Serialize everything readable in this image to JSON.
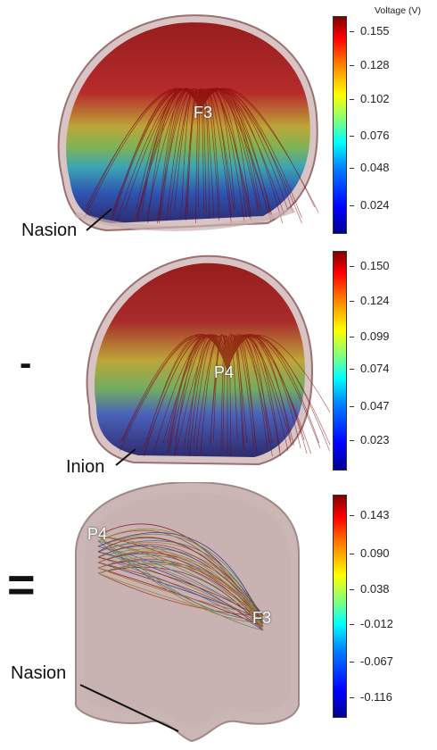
{
  "colorbar_title": "Voltage (V)",
  "panels": [
    {
      "electrode": "F3",
      "landmark": "Nasion",
      "ticks": [
        "0.155",
        "0.128",
        "0.102",
        "0.076",
        "0.048",
        "0.024"
      ]
    },
    {
      "electrode": "P4",
      "landmark": "Inion",
      "operator": "-",
      "ticks": [
        "0.150",
        "0.124",
        "0.099",
        "0.074",
        "0.047",
        "0.023"
      ]
    },
    {
      "electrode_a": "P4",
      "electrode_b": "F3",
      "landmark": "Nasion",
      "operator": "=",
      "ticks": [
        "0.143",
        "0.090",
        "0.038",
        "-0.012",
        "-0.067",
        "-0.116"
      ]
    }
  ]
}
